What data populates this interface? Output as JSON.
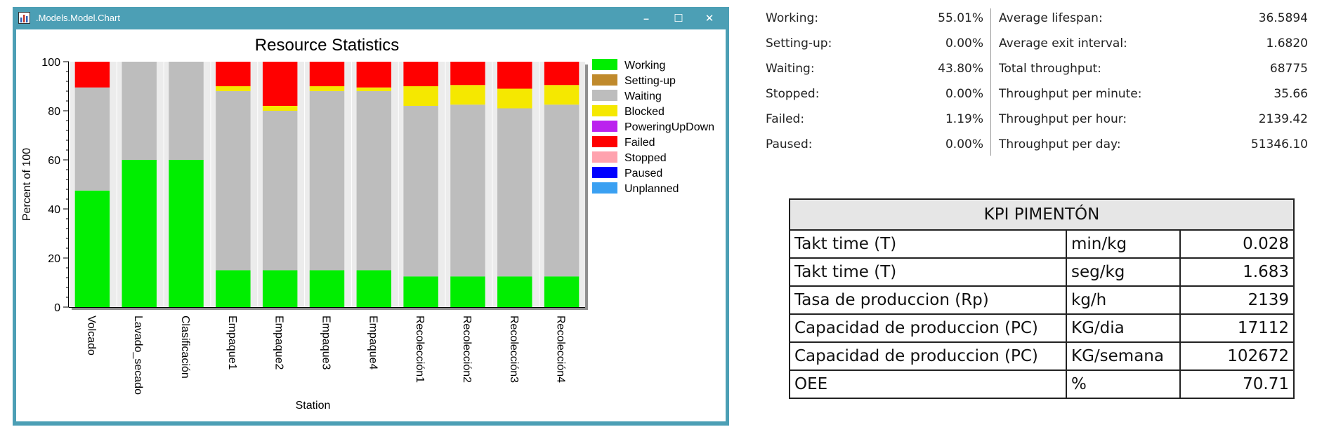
{
  "window": {
    "title": ".Models.Model.Chart",
    "controls": {
      "minimize": "–",
      "maximize": "☐",
      "close": "✕"
    }
  },
  "colors": {
    "window_frame": "#4c9fb5",
    "working": "#00ee00",
    "setting_up": "#c08a2c",
    "waiting": "#bdbdbd",
    "blocked": "#f5e800",
    "powering": "#bb22ee",
    "failed": "#ff0000",
    "stopped": "#ffa2ae",
    "paused": "#0000ff",
    "unplanned": "#3aa0f2"
  },
  "chart_data": {
    "type": "bar",
    "stacked": true,
    "title": "Resource Statistics",
    "xlabel": "Station",
    "ylabel": "Percent of 100",
    "ylim": [
      0,
      100
    ],
    "yticks": [
      "0",
      "20",
      "40",
      "60",
      "80",
      "100"
    ],
    "categories": [
      "Volcado",
      "Lavado_secado",
      "Clasificación",
      "Empaque1",
      "Empaque2",
      "Empaque3",
      "Empaque4",
      "Recolección1",
      "Recolección2",
      "Recolección3",
      "Recolección4"
    ],
    "legend_position": "right",
    "legend": [
      "Working",
      "Setting-up",
      "Waiting",
      "Blocked",
      "PoweringUpDown",
      "Failed",
      "Stopped",
      "Paused",
      "Unplanned"
    ],
    "series": [
      {
        "name": "Working",
        "color_key": "working",
        "values": [
          47.5,
          60,
          60,
          15,
          15,
          15,
          15,
          12.5,
          12.5,
          12.5,
          12.5
        ]
      },
      {
        "name": "Setting-up",
        "color_key": "setting_up",
        "values": [
          0,
          0,
          0,
          0,
          0,
          0,
          0,
          0,
          0,
          0,
          0
        ]
      },
      {
        "name": "Waiting",
        "color_key": "waiting",
        "values": [
          42,
          40,
          40,
          73,
          65,
          73,
          73,
          69.5,
          70,
          68.5,
          70
        ]
      },
      {
        "name": "Blocked",
        "color_key": "blocked",
        "values": [
          0,
          0,
          0,
          2,
          2,
          2,
          1.5,
          8,
          8,
          8,
          8
        ]
      },
      {
        "name": "PoweringUpDown",
        "color_key": "powering",
        "values": [
          0,
          0,
          0,
          0,
          0,
          0,
          0,
          0,
          0,
          0,
          0
        ]
      },
      {
        "name": "Failed",
        "color_key": "failed",
        "values": [
          10.5,
          0,
          0,
          10,
          18,
          10,
          10.5,
          10,
          9.5,
          11,
          9.5
        ]
      },
      {
        "name": "Stopped",
        "color_key": "stopped",
        "values": [
          0,
          0,
          0,
          0,
          0,
          0,
          0,
          0,
          0,
          0,
          0
        ]
      },
      {
        "name": "Paused",
        "color_key": "paused",
        "values": [
          0,
          0,
          0,
          0,
          0,
          0,
          0,
          0,
          0,
          0,
          0
        ]
      },
      {
        "name": "Unplanned",
        "color_key": "unplanned",
        "values": [
          0,
          0,
          0,
          0,
          0,
          0,
          0,
          0,
          0,
          0,
          0
        ]
      }
    ]
  },
  "stats": {
    "left": [
      {
        "label": "Working:",
        "value": "55.01%"
      },
      {
        "label": "Setting-up:",
        "value": "0.00%"
      },
      {
        "label": "Waiting:",
        "value": "43.80%"
      },
      {
        "label": "Stopped:",
        "value": "0.00%"
      },
      {
        "label": "Failed:",
        "value": "1.19%"
      },
      {
        "label": "Paused:",
        "value": "0.00%"
      }
    ],
    "right": [
      {
        "label": "Average lifespan:",
        "value": "36.5894"
      },
      {
        "label": "Average exit interval:",
        "value": "1.6820"
      },
      {
        "label": "Total throughput:",
        "value": "68775"
      },
      {
        "label": "Throughput per minute:",
        "value": "35.66"
      },
      {
        "label": "Throughput per hour:",
        "value": "2139.42"
      },
      {
        "label": "Throughput per day:",
        "value": "51346.10"
      }
    ]
  },
  "kpi": {
    "title": "KPI PIMENTÓN",
    "rows": [
      {
        "name": "Takt time (T)",
        "unit": "min/kg",
        "value": "0.028"
      },
      {
        "name": "Takt time (T)",
        "unit": "seg/kg",
        "value": "1.683"
      },
      {
        "name": "Tasa de produccion (Rp)",
        "unit": "kg/h",
        "value": "2139"
      },
      {
        "name": "Capacidad de produccion (PC)",
        "unit": "KG/dia",
        "value": "17112"
      },
      {
        "name": "Capacidad de produccion (PC)",
        "unit": "KG/semana",
        "value": "102672"
      },
      {
        "name": "OEE",
        "unit": "%",
        "value": "70.71"
      }
    ]
  }
}
